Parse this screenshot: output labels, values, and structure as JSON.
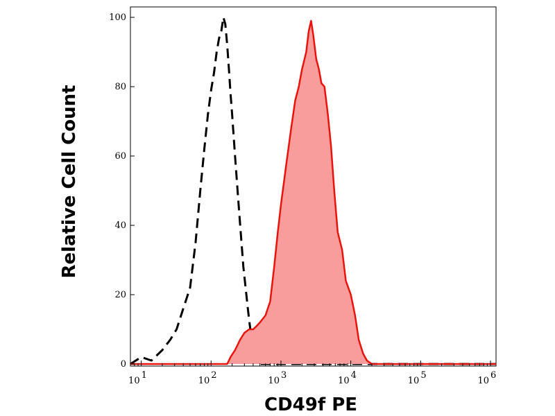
{
  "chart_data": {
    "type": "area",
    "xlabel": "CD49f PE",
    "ylabel": "Relative Cell Count",
    "x_scale": "log",
    "xlim": [
      7,
      1200000
    ],
    "ylim": [
      0,
      100
    ],
    "grid": false,
    "y_ticks": [
      {
        "value": 0,
        "label": "0"
      },
      {
        "value": 20,
        "label": "20"
      },
      {
        "value": 40,
        "label": "40"
      },
      {
        "value": 60,
        "label": "60"
      },
      {
        "value": 80,
        "label": "80"
      },
      {
        "value": 100,
        "label": "100"
      }
    ],
    "x_ticks": [
      {
        "value": 10,
        "base": "10",
        "exp": "1"
      },
      {
        "value": 100,
        "base": "10",
        "exp": "2"
      },
      {
        "value": 1000,
        "base": "10",
        "exp": "3"
      },
      {
        "value": 10000,
        "base": "10",
        "exp": "4"
      },
      {
        "value": 100000,
        "base": "10",
        "exp": "5"
      },
      {
        "value": 1000000,
        "base": "10",
        "exp": "6"
      }
    ],
    "series": [
      {
        "style": "dashed",
        "color": "#000000",
        "fill": "none",
        "points": [
          [
            7,
            0
          ],
          [
            10,
            2
          ],
          [
            14,
            1
          ],
          [
            20,
            4
          ],
          [
            26,
            7
          ],
          [
            32,
            10
          ],
          [
            40,
            16
          ],
          [
            50,
            22
          ],
          [
            60,
            35
          ],
          [
            70,
            50
          ],
          [
            80,
            62
          ],
          [
            90,
            72
          ],
          [
            100,
            79
          ],
          [
            110,
            84
          ],
          [
            120,
            90
          ],
          [
            130,
            94
          ],
          [
            140,
            96
          ],
          [
            150,
            100
          ],
          [
            160,
            98
          ],
          [
            170,
            92
          ],
          [
            180,
            85
          ],
          [
            190,
            78
          ],
          [
            200,
            72
          ],
          [
            220,
            60
          ],
          [
            250,
            45
          ],
          [
            290,
            28
          ],
          [
            340,
            15
          ],
          [
            390,
            5
          ],
          [
            430,
            1
          ],
          [
            480,
            0
          ],
          [
            1200000,
            0
          ]
        ]
      },
      {
        "style": "solid",
        "color": "#e8140c",
        "fill": "#f89c9c",
        "points": [
          [
            7,
            0
          ],
          [
            170,
            0
          ],
          [
            190,
            2
          ],
          [
            220,
            4
          ],
          [
            260,
            7
          ],
          [
            300,
            9
          ],
          [
            350,
            10
          ],
          [
            400,
            10
          ],
          [
            450,
            11
          ],
          [
            500,
            12
          ],
          [
            600,
            14
          ],
          [
            700,
            18
          ],
          [
            800,
            28
          ],
          [
            900,
            38
          ],
          [
            1000,
            46
          ],
          [
            1200,
            58
          ],
          [
            1400,
            68
          ],
          [
            1600,
            76
          ],
          [
            1800,
            80
          ],
          [
            2000,
            85
          ],
          [
            2300,
            90
          ],
          [
            2500,
            96
          ],
          [
            2700,
            99
          ],
          [
            2900,
            95
          ],
          [
            3200,
            88
          ],
          [
            3500,
            85
          ],
          [
            3800,
            81
          ],
          [
            4200,
            80
          ],
          [
            4700,
            72
          ],
          [
            5200,
            63
          ],
          [
            5800,
            50
          ],
          [
            6500,
            38
          ],
          [
            7500,
            33
          ],
          [
            8500,
            24
          ],
          [
            10000,
            20
          ],
          [
            11500,
            14
          ],
          [
            13000,
            7
          ],
          [
            15000,
            3
          ],
          [
            17000,
            1
          ],
          [
            20000,
            0
          ],
          [
            1200000,
            0
          ]
        ]
      }
    ]
  }
}
